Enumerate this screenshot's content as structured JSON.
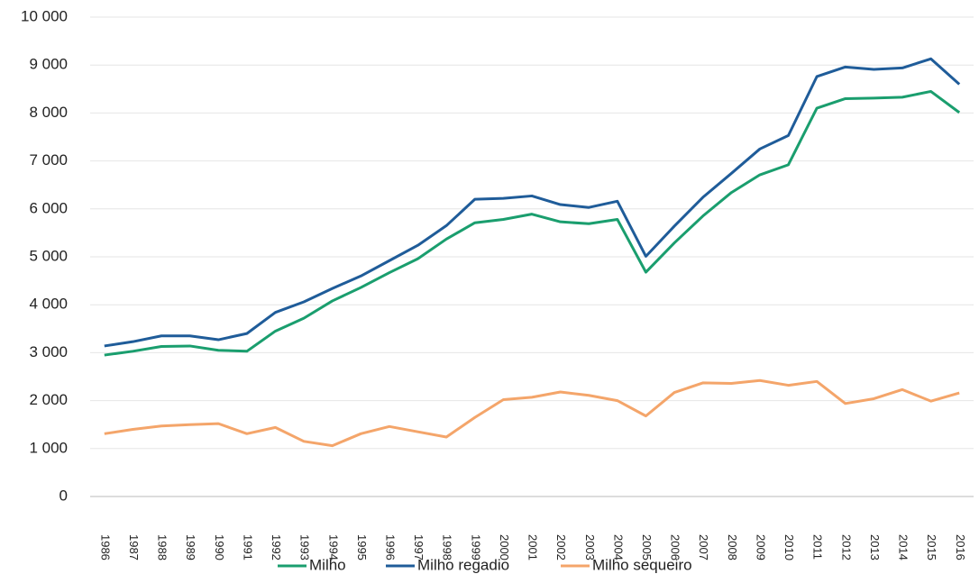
{
  "chart_data": {
    "type": "line",
    "categories": [
      "1986",
      "1987",
      "1988",
      "1989",
      "1990",
      "1991",
      "1992",
      "1993",
      "1994",
      "1995",
      "1996",
      "1997",
      "1998",
      "1999",
      "2000",
      "2001",
      "2002",
      "2003",
      "2004",
      "2005",
      "2006",
      "2007",
      "2008",
      "2009",
      "2010",
      "2011",
      "2012",
      "2013",
      "2014",
      "2015",
      "2016"
    ],
    "series": [
      {
        "name": "Milho",
        "color": "#1a9e6e",
        "values": [
          2950,
          3030,
          3130,
          3140,
          3050,
          3030,
          3450,
          3720,
          4080,
          4360,
          4670,
          4960,
          5370,
          5710,
          5780,
          5890,
          5730,
          5690,
          5780,
          4680,
          5290,
          5850,
          6340,
          6710,
          6920,
          8100,
          8300,
          8310,
          8330,
          8450,
          8010
        ]
      },
      {
        "name": "Milho regadio",
        "color": "#1f5c99",
        "values": [
          3140,
          3230,
          3350,
          3350,
          3270,
          3400,
          3840,
          4060,
          4340,
          4600,
          4920,
          5240,
          5650,
          6200,
          6220,
          6270,
          6090,
          6030,
          6160,
          5010,
          5640,
          6240,
          6740,
          7250,
          7530,
          8760,
          8960,
          8910,
          8940,
          9130,
          8600
        ]
      },
      {
        "name": "Milho sequeiro",
        "color": "#f4a56a",
        "values": [
          1310,
          1400,
          1470,
          1500,
          1520,
          1310,
          1440,
          1150,
          1060,
          1310,
          1460,
          1350,
          1240,
          1650,
          2020,
          2070,
          2180,
          2110,
          2000,
          1680,
          2170,
          2370,
          2360,
          2420,
          2320,
          2400,
          1940,
          2040,
          2230,
          1990,
          2160
        ]
      }
    ],
    "ylim": [
      0,
      10000
    ],
    "yticks": [
      0,
      {
        "value": 1000,
        "label": "1 000"
      },
      {
        "value": 2000,
        "label": "2 000"
      },
      {
        "value": 3000,
        "label": "3 000"
      },
      {
        "value": 4000,
        "label": "4 000"
      },
      {
        "value": 5000,
        "label": "5 000"
      },
      {
        "value": 6000,
        "label": "6 000"
      },
      {
        "value": 7000,
        "label": "7 000"
      },
      {
        "value": 8000,
        "label": "8 000"
      },
      {
        "value": 9000,
        "label": "9 000"
      },
      {
        "value": 10000,
        "label": "10 000"
      }
    ],
    "grid": true,
    "legend": "bottom"
  }
}
